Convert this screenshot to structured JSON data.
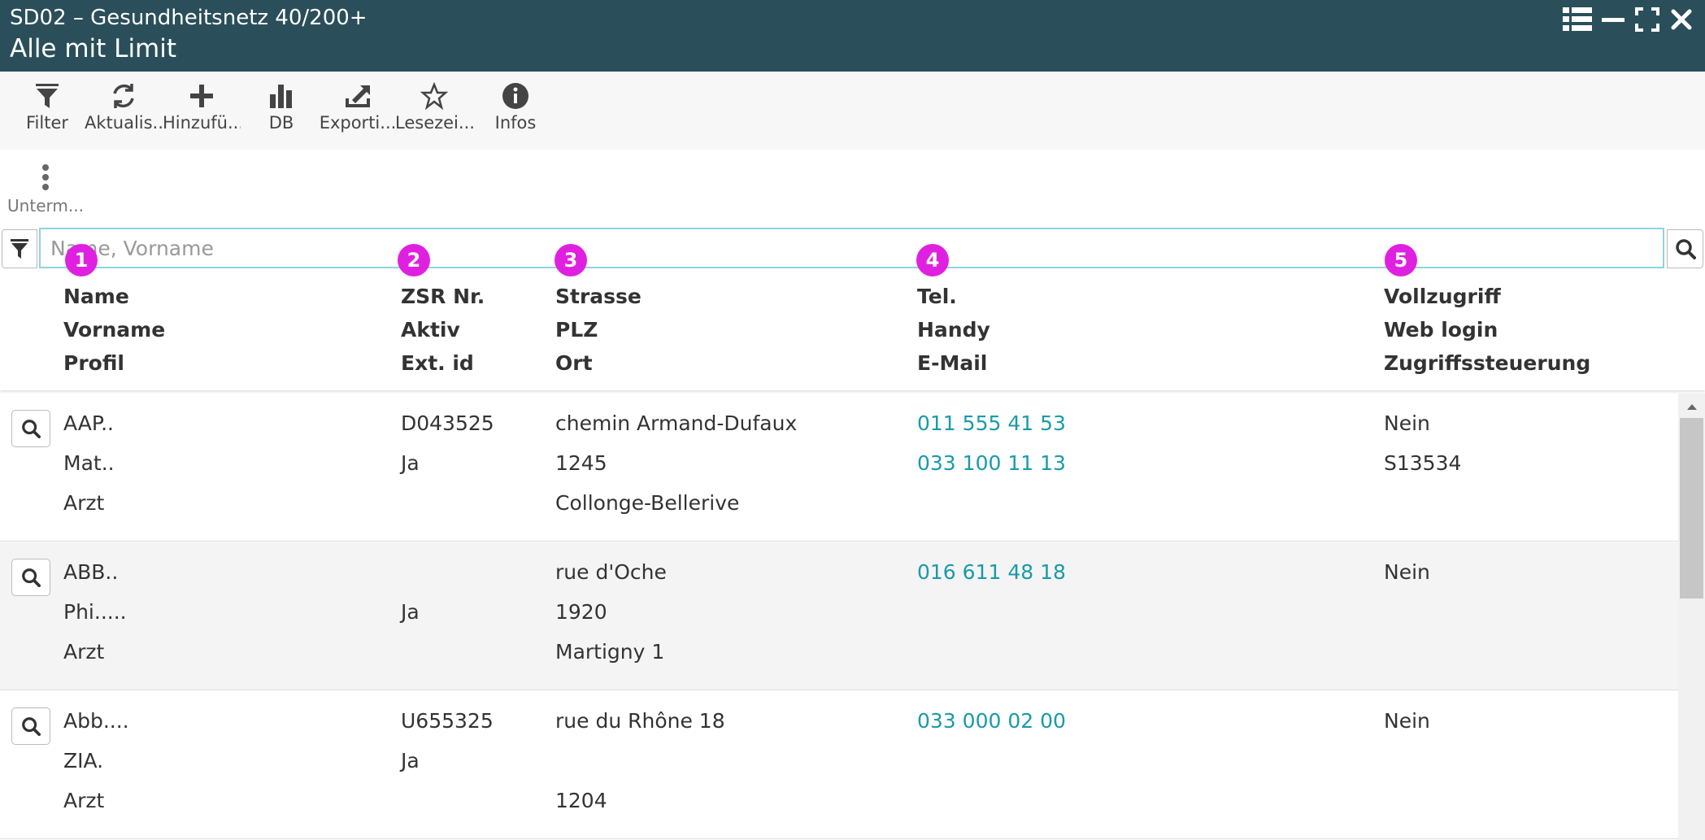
{
  "window": {
    "title": "SD02 – Gesundheitsnetz 40/200+",
    "subtitle": "Alle mit Limit",
    "controls": [
      "list-view-icon",
      "minimize-icon",
      "maximize-icon",
      "close-icon"
    ]
  },
  "toolbar": {
    "filter": "Filter",
    "refresh": "Aktualis...",
    "add": "Hinzufü...",
    "db": "DB",
    "export": "Exporti...",
    "bookmark": "Lesezei...",
    "info": "Infos",
    "more": "Unterm..."
  },
  "search": {
    "placeholder": "Name, Vorname",
    "value": ""
  },
  "columns": [
    {
      "badge": "1",
      "lines": [
        "Name",
        "Vorname",
        "Profil"
      ]
    },
    {
      "badge": "2",
      "lines": [
        "ZSR Nr.",
        "Aktiv",
        "Ext. id"
      ]
    },
    {
      "badge": "3",
      "lines": [
        "Strasse",
        "PLZ",
        "Ort"
      ]
    },
    {
      "badge": "4",
      "lines": [
        "Tel.",
        "Handy",
        "E-Mail"
      ]
    },
    {
      "badge": "5",
      "lines": [
        "Vollzugriff",
        "Web login",
        "Zugriffssteuerung"
      ]
    }
  ],
  "rows": [
    {
      "c1": [
        "AAP..",
        "Mat..",
        "Arzt"
      ],
      "c2": [
        "D043525",
        "Ja",
        ""
      ],
      "c3": [
        "chemin Armand-Dufaux",
        "1245",
        "Collonge-Bellerive"
      ],
      "c4": [
        "011 555 41 53",
        "033 100 11 13",
        ""
      ],
      "c5": [
        "Nein",
        "S13534",
        ""
      ]
    },
    {
      "c1": [
        "ABB..",
        "Phi.....",
        "Arzt"
      ],
      "c2": [
        "",
        "Ja",
        ""
      ],
      "c3": [
        "rue d'Oche",
        "1920",
        "Martigny 1"
      ],
      "c4": [
        "016 611 48 18",
        "",
        ""
      ],
      "c5": [
        "Nein",
        "",
        ""
      ]
    },
    {
      "c1": [
        "Abb....",
        "ZIA.",
        "Arzt"
      ],
      "c2": [
        "U655325",
        "Ja",
        ""
      ],
      "c3": [
        "rue du Rhône 18",
        "",
        "1204"
      ],
      "c4": [
        "033 000 02 00",
        "",
        ""
      ],
      "c5": [
        "Nein",
        "",
        ""
      ]
    }
  ],
  "colors": {
    "titlebar": "#2a4f5a",
    "link": "#1a9aaa",
    "badge": "#e020e0",
    "search_border": "#8fd3dc"
  }
}
